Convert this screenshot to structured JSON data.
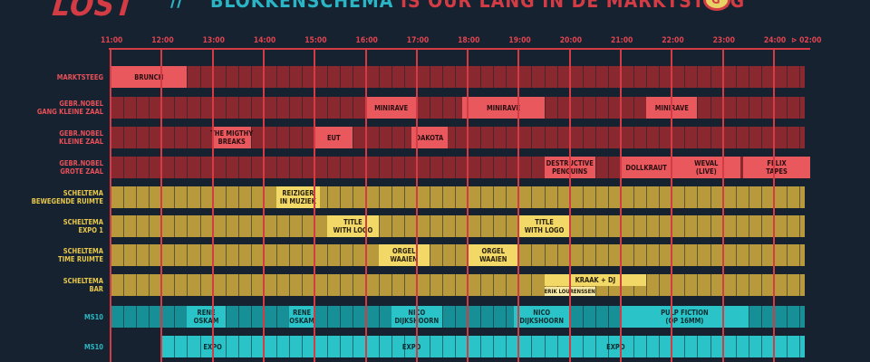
{
  "header": {
    "logo": "LOST",
    "chevrons": "//",
    "title_main": "BLOKKENSCHEMA",
    "title_rest": " IS OUR LANG IN DE MARKTSTEEG",
    "badge_icon": "circle-logo-icon"
  },
  "timeline": {
    "hours": [
      "11:00",
      "12:00",
      "13:00",
      "14:00",
      "15:00",
      "16:00",
      "17:00",
      "18:00",
      "19:00",
      "20:00",
      "21:00",
      "22:00",
      "23:00",
      "24:00"
    ],
    "end_marker": "02:00",
    "end_arrow": "⊳",
    "start_hour": 11,
    "end_hour": 24.67
  },
  "colors": {
    "background": "#162230",
    "accent": "#d33c44",
    "red_band": "#8a2830",
    "red_event": "#e8585c",
    "red_label": "#e85058",
    "yellow_band": "#b89a3c",
    "yellow_event": "#f2d866",
    "yellow_label": "#e8c84c",
    "teal_band": "#178f96",
    "teal_event": "#2ac4c8",
    "teal_label": "#2ab8c4"
  },
  "rows": [
    {
      "label": "MARKTSTEEG",
      "theme": "red",
      "band_start": 11,
      "events": [
        {
          "name": "BRUNCH",
          "start": 11,
          "end": 12.5
        }
      ]
    },
    {
      "label": "GEBR.NOBEL\nGANG KLEINE ZAAL",
      "theme": "red",
      "band_start": 11,
      "events": [
        {
          "name": "MINIRAVE",
          "start": 16,
          "end": 17
        },
        {
          "name": "MINIRAVE",
          "start": 17.9,
          "end": 19.5
        },
        {
          "name": "MINIRAVE",
          "start": 21.5,
          "end": 22.5
        }
      ]
    },
    {
      "label": "GEBR.NOBEL\nKLEINE ZAAL",
      "theme": "red",
      "band_start": 11,
      "events": [
        {
          "name": "THE MIGTHY\nBREAKS",
          "start": 13,
          "end": 13.75
        },
        {
          "name": "EUT",
          "start": 15,
          "end": 15.75
        },
        {
          "name": "DAKOTA",
          "start": 16.9,
          "end": 17.6
        }
      ]
    },
    {
      "label": "GEBR.NOBEL\nGROTE ZAAL",
      "theme": "red",
      "band_start": 11,
      "events": [
        {
          "name": "DESTRUCTIVE\nPENGUINS",
          "start": 19.5,
          "end": 20.5
        },
        {
          "name": "DOLLKRAUT",
          "start": 21,
          "end": 22
        },
        {
          "name": "WEVAL\n(LIVE)",
          "start": 22,
          "end": 23.35
        },
        {
          "name": "FELIX\nTAPES",
          "start": 23.4,
          "end": 24.75
        }
      ]
    },
    {
      "label": "SCHELTEMA\nBEWEGENDE RUIMTE",
      "theme": "yellow",
      "band_start": 11,
      "events": [
        {
          "name": "REIZIGER\nIN MUZIEK",
          "start": 14.25,
          "end": 15.1
        }
      ]
    },
    {
      "label": "SCHELTEMA\nEXPO 1",
      "theme": "yellow",
      "band_start": 11,
      "events": [
        {
          "name": "TITLE\nWITH LOGO",
          "start": 15.25,
          "end": 16.25
        },
        {
          "name": "TITLE\nWITH LOGO",
          "start": 19,
          "end": 20
        }
      ]
    },
    {
      "label": "SCHELTEMA\nTIME RUIMTE",
      "theme": "yellow",
      "band_start": 11,
      "events": [
        {
          "name": "ORGEL\nWAAIEN",
          "start": 16.25,
          "end": 17.25
        },
        {
          "name": "ORGEL\nWAAIEN",
          "start": 18,
          "end": 19
        }
      ]
    },
    {
      "label": "SCHELTEMA\nBAR",
      "theme": "yellow",
      "band_start": 11,
      "events": [
        {
          "name": "KRAAK + DJ",
          "start": 19.5,
          "end": 21.5
        }
      ],
      "sub_label": {
        "name": "ERIK LOURENSSEN",
        "start": 19.5,
        "end": 20.5
      }
    },
    {
      "label": "MS10",
      "theme": "teal",
      "band_start": 11,
      "events": [
        {
          "name": "RENE\nOSKAM",
          "start": 12.5,
          "end": 13.25
        },
        {
          "name": "RENE\nOSKAM",
          "start": 14.5,
          "end": 15
        },
        {
          "name": "NICO\nDIJKSHOORN",
          "start": 16.5,
          "end": 17.5
        },
        {
          "name": "NICO\nDIJKSHOORN",
          "start": 18.9,
          "end": 20
        },
        {
          "name": "PULP FICTION\n(OP 16MM)",
          "start": 21,
          "end": 23.5
        }
      ]
    },
    {
      "label": "MS10",
      "theme": "teal",
      "band_start": 12,
      "events": [
        {
          "name": "EXPO",
          "start": 12,
          "end": 14
        },
        {
          "name": "EXPO",
          "start": 16.9,
          "end": 17.1
        },
        {
          "name": "EXPO",
          "start": 20.9,
          "end": 21.1
        }
      ]
    }
  ]
}
